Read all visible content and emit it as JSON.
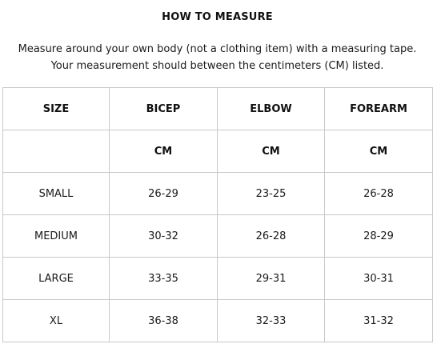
{
  "title": "HOW TO MEASURE",
  "intro": {
    "line1": "Measure around your own body (not a clothing item) with a measuring tape.",
    "line2": "Your measurement should between the centimeters (CM) listed."
  },
  "table": {
    "headers": [
      "SIZE",
      "BICEP",
      "ELBOW",
      "FOREARM"
    ],
    "units": [
      "",
      "CM",
      "CM",
      "CM"
    ],
    "rows": [
      {
        "size": "SMALL",
        "bicep": "26-29",
        "elbow": "23-25",
        "forearm": "26-28"
      },
      {
        "size": "MEDIUM",
        "bicep": "30-32",
        "elbow": "26-28",
        "forearm": "28-29"
      },
      {
        "size": "LARGE",
        "bicep": "33-35",
        "elbow": "29-31",
        "forearm": "30-31"
      },
      {
        "size": "XL",
        "bicep": "36-38",
        "elbow": "32-33",
        "forearm": "31-32"
      }
    ]
  }
}
